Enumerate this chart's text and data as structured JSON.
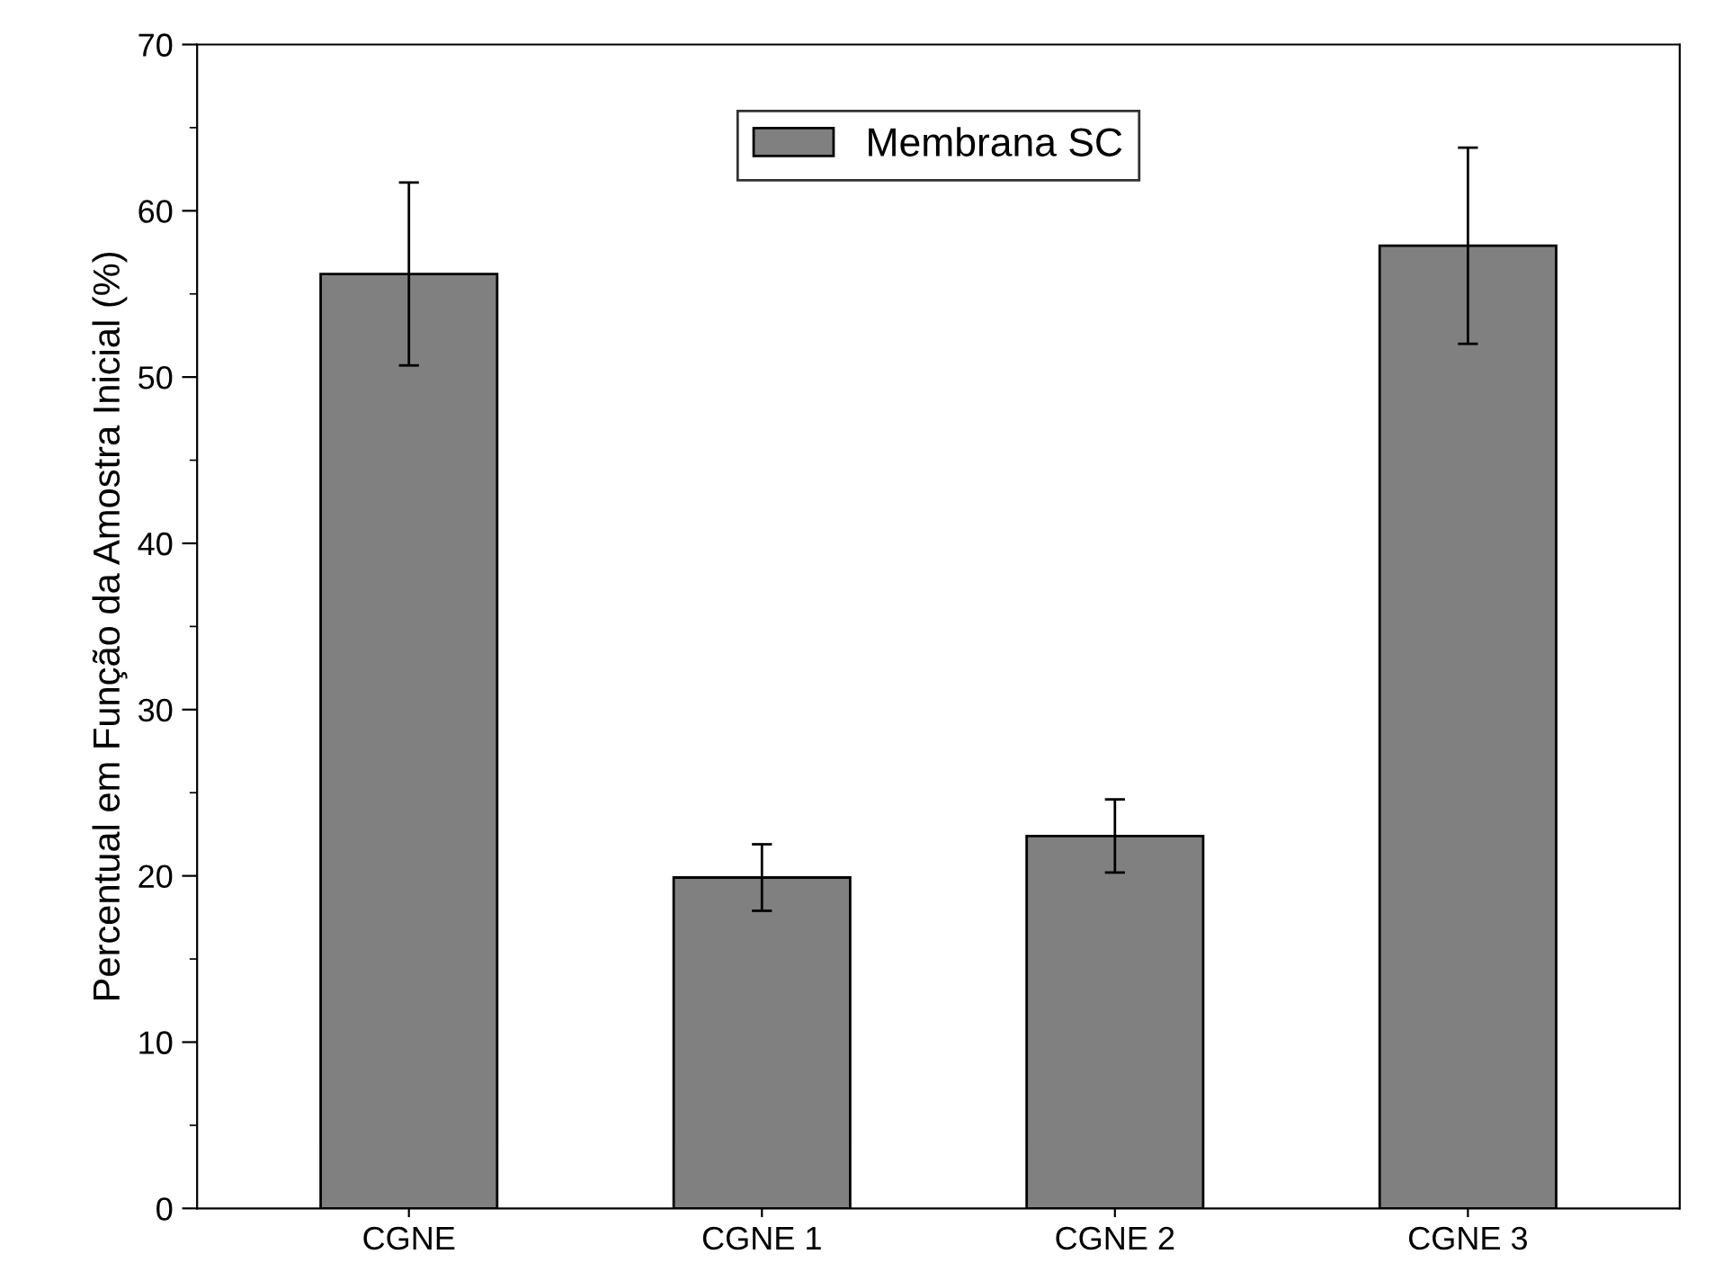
{
  "chart_data": {
    "type": "bar",
    "ylabel": "Percentual em Função da Amostra Inicial (%)",
    "categories": [
      "CGNE",
      "CGNE 1",
      "CGNE 2",
      "CGNE 3"
    ],
    "series": [
      {
        "name": "Membrana SC",
        "color": "#808080",
        "values": [
          56.2,
          19.9,
          22.4,
          57.9
        ],
        "errors": [
          5.5,
          2.0,
          2.2,
          5.9
        ]
      }
    ],
    "ylim": [
      0,
      70
    ],
    "yticks": [
      0,
      10,
      20,
      30,
      40,
      50,
      60,
      70
    ],
    "grid": false,
    "legend": "top"
  }
}
